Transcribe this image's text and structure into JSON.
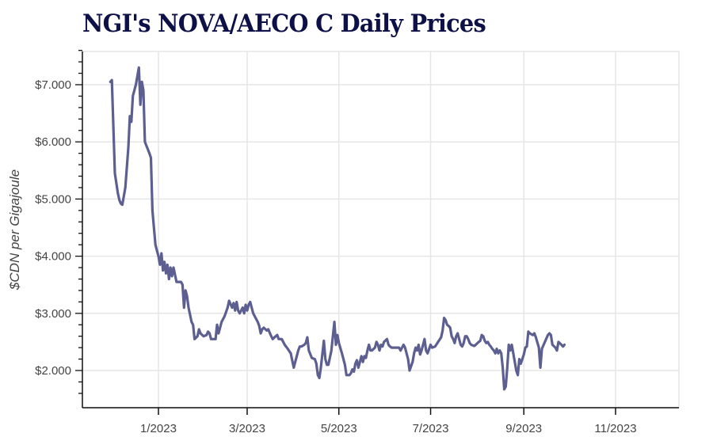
{
  "title": "NGI's NOVA/AECO C Daily Prices",
  "chart_data": {
    "type": "line",
    "title": "NGI's NOVA/AECO C Daily Prices",
    "xlabel": "",
    "ylabel": "$CDN per Gigajoule",
    "ylim": [
      1.5,
      7.6
    ],
    "y_ticks": [
      2,
      3,
      4,
      5,
      6,
      7
    ],
    "y_tick_labels": [
      "$2.000",
      "$3.000",
      "$4.000",
      "$5.000",
      "$6.000",
      "$7.000"
    ],
    "x_ticks": [
      "1/2023",
      "3/2023",
      "5/2023",
      "7/2023",
      "9/2023",
      "11/2023"
    ],
    "x_tick_day_offsets": [
      0,
      59,
      120,
      181,
      243,
      304
    ],
    "x_unit": "days since 2023-01-01",
    "grid": true,
    "legend": "none",
    "line_color": "#5c5f8f",
    "series": [
      {
        "name": "NOVA/AECO C",
        "points": [
          [
            -32,
            7.05
          ],
          [
            -31,
            7.08
          ],
          [
            -29,
            5.45
          ],
          [
            -27,
            5.1
          ],
          [
            -26,
            4.98
          ],
          [
            -25,
            4.92
          ],
          [
            -24,
            4.9
          ],
          [
            -22,
            5.2
          ],
          [
            -20,
            5.9
          ],
          [
            -19,
            6.45
          ],
          [
            -18,
            6.35
          ],
          [
            -17,
            6.8
          ],
          [
            -15,
            7.0
          ],
          [
            -13,
            7.3
          ],
          [
            -12,
            6.65
          ],
          [
            -11,
            7.05
          ],
          [
            -10,
            6.9
          ],
          [
            -9,
            6.0
          ],
          [
            -6,
            5.8
          ],
          [
            -5,
            5.72
          ],
          [
            -4,
            4.8
          ],
          [
            -2,
            4.2
          ],
          [
            0,
            4.0
          ],
          [
            1,
            3.85
          ],
          [
            2,
            4.05
          ],
          [
            3,
            3.75
          ],
          [
            4,
            3.9
          ],
          [
            5,
            3.7
          ],
          [
            6,
            3.85
          ],
          [
            7,
            3.6
          ],
          [
            8,
            3.8
          ],
          [
            9,
            3.65
          ],
          [
            10,
            3.8
          ],
          [
            12,
            3.55
          ],
          [
            15,
            3.55
          ],
          [
            16,
            3.5
          ],
          [
            17,
            3.1
          ],
          [
            18,
            3.4
          ],
          [
            19,
            3.3
          ],
          [
            20,
            3.1
          ],
          [
            22,
            2.85
          ],
          [
            23,
            2.8
          ],
          [
            24,
            2.55
          ],
          [
            26,
            2.6
          ],
          [
            27,
            2.72
          ],
          [
            28,
            2.65
          ],
          [
            30,
            2.6
          ],
          [
            32,
            2.62
          ],
          [
            33,
            2.68
          ],
          [
            34,
            2.65
          ],
          [
            35,
            2.55
          ],
          [
            38,
            2.55
          ],
          [
            39,
            2.8
          ],
          [
            40,
            2.65
          ],
          [
            42,
            2.85
          ],
          [
            44,
            2.95
          ],
          [
            46,
            3.1
          ],
          [
            47,
            3.22
          ],
          [
            49,
            3.1
          ],
          [
            50,
            3.18
          ],
          [
            51,
            3.05
          ],
          [
            52,
            3.2
          ],
          [
            53,
            3.05
          ],
          [
            54,
            3.0
          ],
          [
            56,
            3.1
          ],
          [
            57,
            3.0
          ],
          [
            58,
            3.15
          ],
          [
            59,
            3.05
          ],
          [
            60,
            3.15
          ],
          [
            61,
            3.2
          ],
          [
            63,
            3.0
          ],
          [
            64,
            2.95
          ],
          [
            66,
            2.85
          ],
          [
            67,
            2.78
          ],
          [
            68,
            2.65
          ],
          [
            69,
            2.72
          ],
          [
            70,
            2.75
          ],
          [
            72,
            2.7
          ],
          [
            73,
            2.72
          ],
          [
            75,
            2.6
          ],
          [
            76,
            2.55
          ],
          [
            78,
            2.6
          ],
          [
            79,
            2.62
          ],
          [
            80,
            2.55
          ],
          [
            82,
            2.55
          ],
          [
            84,
            2.45
          ],
          [
            86,
            2.38
          ],
          [
            88,
            2.3
          ],
          [
            90,
            2.05
          ],
          [
            92,
            2.25
          ],
          [
            93,
            2.35
          ],
          [
            94,
            2.42
          ],
          [
            95,
            2.42
          ],
          [
            97,
            2.45
          ],
          [
            98,
            2.48
          ],
          [
            99,
            2.58
          ],
          [
            100,
            2.35
          ],
          [
            102,
            2.22
          ],
          [
            104,
            2.2
          ],
          [
            105,
            2.12
          ],
          [
            106,
            1.92
          ],
          [
            107,
            1.87
          ],
          [
            108,
            2.05
          ],
          [
            110,
            2.52
          ],
          [
            111,
            2.2
          ],
          [
            112,
            2.1
          ],
          [
            113,
            2.1
          ],
          [
            115,
            2.35
          ],
          [
            117,
            2.85
          ],
          [
            118,
            2.45
          ],
          [
            119,
            2.62
          ],
          [
            120,
            2.48
          ],
          [
            122,
            2.3
          ],
          [
            124,
            2.1
          ],
          [
            125,
            1.92
          ],
          [
            127,
            1.92
          ],
          [
            128,
            1.95
          ],
          [
            129,
            2.02
          ],
          [
            130,
            1.98
          ],
          [
            131,
            2.12
          ],
          [
            132,
            2.18
          ],
          [
            133,
            2.05
          ],
          [
            134,
            2.15
          ],
          [
            135,
            2.25
          ],
          [
            136,
            2.15
          ],
          [
            137,
            2.25
          ],
          [
            138,
            2.22
          ],
          [
            139,
            2.35
          ],
          [
            140,
            2.45
          ],
          [
            141,
            2.35
          ],
          [
            142,
            2.35
          ],
          [
            144,
            2.4
          ],
          [
            145,
            2.5
          ],
          [
            146,
            2.45
          ],
          [
            147,
            2.35
          ],
          [
            148,
            2.45
          ],
          [
            149,
            2.42
          ],
          [
            150,
            2.5
          ],
          [
            152,
            2.55
          ],
          [
            153,
            2.45
          ],
          [
            154,
            2.42
          ],
          [
            155,
            2.4
          ],
          [
            160,
            2.4
          ],
          [
            161,
            2.35
          ],
          [
            163,
            2.45
          ],
          [
            164,
            2.4
          ],
          [
            166,
            2.2
          ],
          [
            167,
            2.0
          ],
          [
            169,
            2.15
          ],
          [
            170,
            2.3
          ],
          [
            171,
            2.4
          ],
          [
            172,
            2.35
          ],
          [
            173,
            2.45
          ],
          [
            174,
            2.28
          ],
          [
            175,
            2.35
          ],
          [
            176,
            2.45
          ],
          [
            177,
            2.55
          ],
          [
            178,
            2.35
          ],
          [
            179,
            2.3
          ],
          [
            181,
            2.45
          ],
          [
            182,
            2.4
          ],
          [
            184,
            2.42
          ],
          [
            186,
            2.5
          ],
          [
            188,
            2.58
          ],
          [
            189,
            2.7
          ],
          [
            190,
            2.92
          ],
          [
            191,
            2.88
          ],
          [
            192,
            2.8
          ],
          [
            193,
            2.78
          ],
          [
            194,
            2.75
          ],
          [
            195,
            2.6
          ],
          [
            196,
            2.55
          ],
          [
            197,
            2.48
          ],
          [
            198,
            2.6
          ],
          [
            199,
            2.65
          ],
          [
            200,
            2.55
          ],
          [
            201,
            2.45
          ],
          [
            202,
            2.42
          ],
          [
            203,
            2.48
          ],
          [
            204,
            2.6
          ],
          [
            205,
            2.6
          ],
          [
            206,
            2.55
          ],
          [
            207,
            2.48
          ],
          [
            208,
            2.45
          ],
          [
            210,
            2.43
          ],
          [
            211,
            2.45
          ],
          [
            213,
            2.5
          ],
          [
            214,
            2.52
          ],
          [
            215,
            2.62
          ],
          [
            216,
            2.6
          ],
          [
            217,
            2.52
          ],
          [
            218,
            2.48
          ],
          [
            219,
            2.5
          ],
          [
            220,
            2.45
          ],
          [
            221,
            2.42
          ],
          [
            222,
            2.38
          ],
          [
            223,
            2.35
          ],
          [
            224,
            2.3
          ],
          [
            225,
            2.38
          ],
          [
            226,
            2.3
          ],
          [
            227,
            2.35
          ],
          [
            228,
            2.3
          ],
          [
            229,
            2.05
          ],
          [
            230,
            1.67
          ],
          [
            231,
            1.72
          ],
          [
            232,
            2.05
          ],
          [
            233,
            2.45
          ],
          [
            234,
            2.35
          ],
          [
            235,
            2.45
          ],
          [
            237,
            2.15
          ],
          [
            238,
            2.0
          ],
          [
            239,
            1.92
          ],
          [
            240,
            2.2
          ],
          [
            241,
            2.12
          ],
          [
            242,
            2.2
          ],
          [
            243,
            2.28
          ],
          [
            244,
            2.4
          ],
          [
            245,
            2.42
          ],
          [
            246,
            2.68
          ],
          [
            247,
            2.65
          ],
          [
            249,
            2.62
          ],
          [
            250,
            2.65
          ],
          [
            251,
            2.58
          ],
          [
            253,
            2.4
          ],
          [
            254,
            2.05
          ],
          [
            255,
            2.38
          ],
          [
            257,
            2.5
          ],
          [
            259,
            2.62
          ],
          [
            260,
            2.65
          ],
          [
            261,
            2.62
          ],
          [
            262,
            2.45
          ],
          [
            264,
            2.4
          ],
          [
            265,
            2.35
          ],
          [
            266,
            2.5
          ],
          [
            268,
            2.45
          ],
          [
            269,
            2.42
          ],
          [
            270,
            2.45
          ]
        ]
      }
    ]
  },
  "axes": {
    "y_label": "$CDN per Gigajoule",
    "y_tick_labels": [
      "$7.000",
      "$6.000",
      "$5.000",
      "$4.000",
      "$3.000",
      "$2.000"
    ],
    "x_tick_labels": [
      "1/2023",
      "3/2023",
      "5/2023",
      "7/2023",
      "9/2023",
      "11/2023"
    ]
  }
}
